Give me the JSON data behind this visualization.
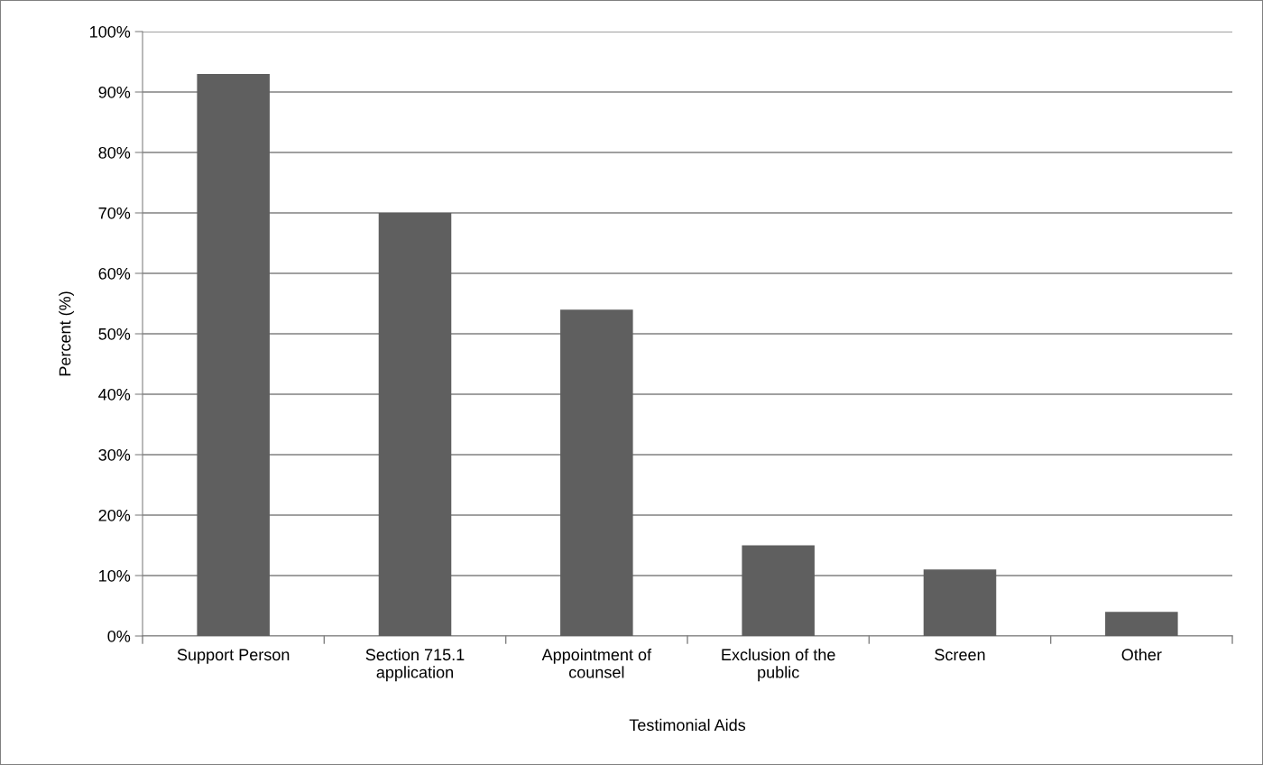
{
  "chart_data": {
    "type": "bar",
    "xlabel": "Testimonial Aids",
    "ylabel": "Percent (%)",
    "categories": [
      "Support Person",
      "Section 715.1\napplication",
      "Appointment of\ncounsel",
      "Exclusion of the\npublic",
      "Screen",
      "Other"
    ],
    "values": [
      93,
      70,
      54,
      15,
      11,
      4
    ],
    "color": "#5f5f5f",
    "ylim": [
      0,
      100
    ],
    "yticks": [
      {
        "value": 0,
        "label": "0%"
      },
      {
        "value": 10,
        "label": "10%"
      },
      {
        "value": 20,
        "label": "20%"
      },
      {
        "value": 30,
        "label": "30%"
      },
      {
        "value": 40,
        "label": "40%"
      },
      {
        "value": 50,
        "label": "50%"
      },
      {
        "value": 60,
        "label": "60%"
      },
      {
        "value": 70,
        "label": "70%"
      },
      {
        "value": 80,
        "label": "80%"
      },
      {
        "value": 90,
        "label": "90%"
      },
      {
        "value": 100,
        "label": "100%"
      }
    ],
    "grid": "y"
  }
}
